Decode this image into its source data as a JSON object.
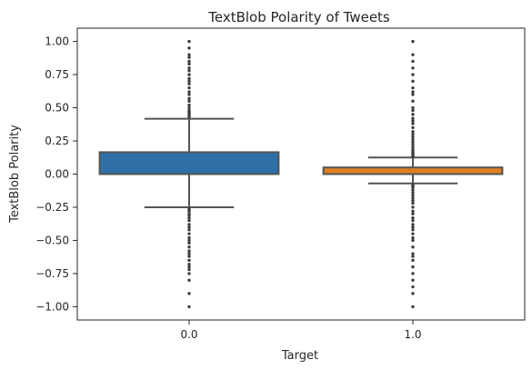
{
  "chart_data": {
    "type": "box",
    "title": "TextBlob Polarity of Tweets",
    "xlabel": "Target",
    "ylabel": "TextBlob Polarity",
    "categories": [
      "0.0",
      "1.0"
    ],
    "ylim": [
      -1.1,
      1.1
    ],
    "yticks": [
      1.0,
      0.75,
      0.5,
      0.25,
      0.0,
      -0.25,
      -0.5,
      -0.75,
      -1.0
    ],
    "ytick_labels": [
      "1.00",
      "0.75",
      "0.50",
      "0.25",
      "0.00",
      "−0.25",
      "−0.50",
      "−0.75",
      "−1.00"
    ],
    "grid": false,
    "boxes": [
      {
        "category": "0.0",
        "color": "#2f6fa8",
        "q1": 0.0,
        "median": 0.0,
        "q3": 0.165,
        "whisker_low": -0.25,
        "whisker_high": 0.417,
        "outliers_high": [
          0.43,
          0.44,
          0.45,
          0.46,
          0.47,
          0.48,
          0.5,
          0.52,
          0.55,
          0.57,
          0.6,
          0.62,
          0.65,
          0.68,
          0.7,
          0.72,
          0.75,
          0.78,
          0.8,
          0.83,
          0.85,
          0.88,
          0.9,
          0.95,
          1.0
        ],
        "outliers_low": [
          -0.26,
          -0.27,
          -0.28,
          -0.3,
          -0.31,
          -0.33,
          -0.35,
          -0.38,
          -0.4,
          -0.42,
          -0.45,
          -0.48,
          -0.5,
          -0.52,
          -0.55,
          -0.58,
          -0.6,
          -0.62,
          -0.65,
          -0.68,
          -0.7,
          -0.72,
          -0.75,
          -0.8,
          -0.9,
          -1.0
        ]
      },
      {
        "category": "1.0",
        "color": "#e07f22",
        "q1": 0.0,
        "median": 0.0,
        "q3": 0.05,
        "whisker_low": -0.07,
        "whisker_high": 0.125,
        "outliers_high": [
          0.13,
          0.14,
          0.15,
          0.16,
          0.17,
          0.18,
          0.2,
          0.22,
          0.24,
          0.26,
          0.28,
          0.3,
          0.32,
          0.35,
          0.38,
          0.4,
          0.42,
          0.45,
          0.48,
          0.5,
          0.55,
          0.6,
          0.62,
          0.65,
          0.7,
          0.75,
          0.8,
          0.85,
          0.9,
          1.0
        ],
        "outliers_low": [
          -0.08,
          -0.09,
          -0.1,
          -0.12,
          -0.14,
          -0.16,
          -0.18,
          -0.2,
          -0.22,
          -0.25,
          -0.28,
          -0.3,
          -0.33,
          -0.35,
          -0.38,
          -0.4,
          -0.42,
          -0.45,
          -0.48,
          -0.5,
          -0.55,
          -0.6,
          -0.62,
          -0.65,
          -0.7,
          -0.75,
          -0.8,
          -0.85,
          -0.9,
          -1.0
        ]
      }
    ]
  }
}
